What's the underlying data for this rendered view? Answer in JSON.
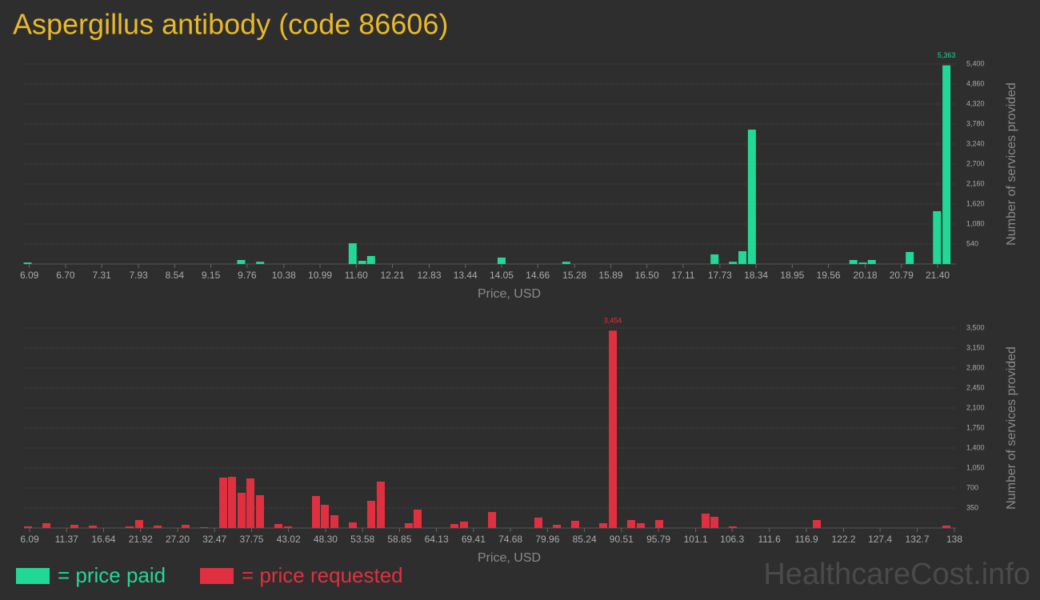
{
  "header": {
    "title": "Aspergillus antibody (code 86606)",
    "watermark": "HealthcareCost.info"
  },
  "chart_data": [
    {
      "type": "bar",
      "x_label": "Price, USD",
      "y_label": "Number of services provided",
      "xlim": [
        6.0,
        21.71
      ],
      "ylim": [
        0,
        5400
      ],
      "xticks": [
        6.09,
        {
          "value": 6.7,
          "label": "6.70"
        },
        7.31,
        7.93,
        8.54,
        9.15,
        9.76,
        10.38,
        10.99,
        {
          "value": 11.6,
          "label": "11.60"
        },
        12.21,
        12.83,
        13.44,
        14.05,
        14.66,
        15.28,
        15.89,
        {
          "value": 16.5,
          "label": "16.50"
        },
        17.11,
        17.73,
        18.34,
        18.95,
        19.56,
        20.18,
        20.79,
        {
          "value": 21.4,
          "label": "21.40"
        }
      ],
      "yticks": [
        540,
        {
          "value": 1080,
          "label": "1,080"
        },
        {
          "value": 1620,
          "label": "1,620"
        },
        {
          "value": 2160,
          "label": "2,160"
        },
        {
          "value": 2700,
          "label": "2,700"
        },
        {
          "value": 3240,
          "label": "3,240"
        },
        {
          "value": 3780,
          "label": "3,780"
        },
        {
          "value": 4320,
          "label": "4,320"
        },
        {
          "value": 4860,
          "label": "4,860"
        },
        {
          "value": 5400,
          "label": "5,400"
        }
      ],
      "grid": true,
      "series": [
        {
          "name": "= price paid",
          "color": "#22d896",
          "x": [
            6.06,
            9.66,
            9.98,
            11.54,
            11.7,
            11.85,
            14.05,
            15.14,
            17.64,
            17.95,
            18.11,
            18.27,
            19.98,
            20.14,
            20.29,
            20.93,
            21.39,
            21.55
          ],
          "values": [
            40,
            108,
            60,
            560,
            86,
            216,
            173,
            60,
            259,
            60,
            346,
            3629,
            108,
            40,
            108,
            324,
            1426,
            5363
          ],
          "value_labels": [
            null,
            null,
            null,
            null,
            null,
            null,
            null,
            null,
            null,
            null,
            null,
            null,
            null,
            null,
            null,
            null,
            null,
            "5,363"
          ]
        }
      ]
    },
    {
      "type": "bar",
      "x_label": "Price, USD",
      "y_label": "Number of services provided",
      "xlim": [
        5.29,
        138.23
      ],
      "ylim": [
        0,
        3500
      ],
      "xticks": [
        6.09,
        11.37,
        16.64,
        21.92,
        {
          "value": 27.2,
          "label": "27.20"
        },
        32.47,
        37.75,
        43.02,
        {
          "value": 48.3,
          "label": "48.30"
        },
        53.58,
        58.85,
        64.13,
        69.41,
        74.68,
        79.96,
        85.24,
        90.51,
        95.79,
        101.1,
        106.3,
        111.6,
        116.9,
        122.2,
        127.4,
        132.7,
        138
      ],
      "yticks": [
        350,
        700,
        {
          "value": 1050,
          "label": "1,050"
        },
        {
          "value": 1400,
          "label": "1,400"
        },
        {
          "value": 1750,
          "label": "1,750"
        },
        {
          "value": 2100,
          "label": "2,100"
        },
        {
          "value": 2450,
          "label": "2,450"
        },
        {
          "value": 2800,
          "label": "2,800"
        },
        {
          "value": 3150,
          "label": "3,150"
        },
        {
          "value": 3500,
          "label": "3,500"
        }
      ],
      "grid": true,
      "series": [
        {
          "name": "= price requested",
          "color": "#e0303f",
          "x": [
            5.86,
            8.49,
            12.48,
            15.1,
            20.35,
            21.72,
            24.35,
            28.34,
            30.97,
            33.71,
            34.96,
            36.33,
            37.58,
            38.95,
            41.58,
            42.95,
            46.94,
            48.2,
            49.57,
            52.19,
            54.82,
            56.18,
            60.18,
            61.43,
            66.68,
            68.05,
            72.05,
            78.66,
            81.29,
            83.91,
            87.91,
            89.28,
            91.9,
            93.27,
            95.9,
            102.51,
            103.77,
            106.39,
            118.38,
            136.86
          ],
          "values": [
            28,
            84,
            56,
            42,
            28,
            140,
            42,
            56,
            14,
            882,
            896,
            616,
            868,
            574,
            70,
            28,
            560,
            406,
            224,
            98,
            476,
            812,
            84,
            322,
            70,
            112,
            280,
            182,
            56,
            126,
            84,
            3454,
            140,
            84,
            140,
            252,
            196,
            28,
            140,
            42
          ],
          "value_labels": [
            null,
            null,
            null,
            null,
            null,
            null,
            null,
            null,
            null,
            null,
            null,
            null,
            null,
            null,
            null,
            null,
            null,
            null,
            null,
            null,
            null,
            null,
            null,
            null,
            null,
            null,
            null,
            null,
            null,
            null,
            null,
            "3,454",
            null,
            null,
            null,
            null,
            null,
            null,
            null,
            null
          ]
        }
      ]
    }
  ]
}
